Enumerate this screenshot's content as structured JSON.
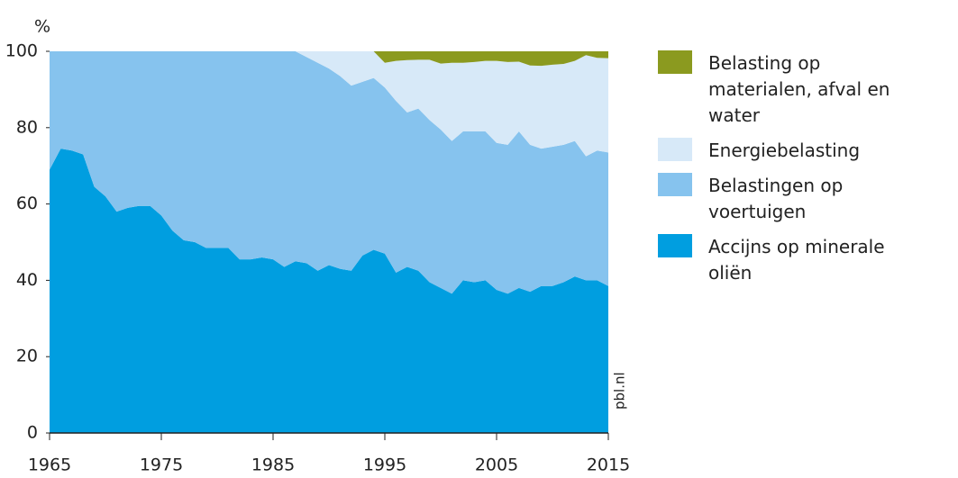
{
  "chart_data": {
    "type": "stacked_area",
    "ylabel": "%",
    "source": "pbl.nl",
    "x": [
      1965,
      1966,
      1967,
      1968,
      1969,
      1970,
      1971,
      1972,
      1973,
      1974,
      1975,
      1976,
      1977,
      1978,
      1979,
      1980,
      1981,
      1982,
      1983,
      1984,
      1985,
      1986,
      1987,
      1988,
      1989,
      1990,
      1991,
      1992,
      1993,
      1994,
      1995,
      1996,
      1997,
      1998,
      1999,
      2000,
      2001,
      2002,
      2003,
      2004,
      2005,
      2006,
      2007,
      2008,
      2009,
      2010,
      2011,
      2012,
      2013,
      2014,
      2015
    ],
    "series": [
      {
        "name": "Accijns op minerale oliën",
        "color": "#009ee0",
        "values": [
          69,
          74.5,
          74,
          73,
          64.5,
          62,
          58,
          59,
          59.5,
          59.5,
          57,
          53,
          50.5,
          50,
          48.5,
          48.5,
          48.5,
          45.5,
          45.5,
          46,
          45.5,
          43.5,
          45,
          44.5,
          42.5,
          44,
          43,
          42.5,
          46.5,
          48,
          47,
          42,
          43.5,
          42.5,
          39.5,
          38,
          36.5,
          40,
          39.5,
          40,
          37.5,
          36.5,
          38,
          37,
          38.5,
          38.5,
          39.5,
          41,
          40,
          40,
          38.5
        ]
      },
      {
        "name": "Belastingen op voertuigen",
        "color": "#86c3ee",
        "values": [
          31,
          25.5,
          26,
          27,
          35.5,
          38,
          42,
          41,
          40.5,
          40.5,
          43,
          47,
          49.5,
          50,
          51.5,
          51.5,
          51.5,
          54.5,
          54.5,
          54,
          54.5,
          56.5,
          55,
          54,
          54.5,
          51.5,
          50.5,
          48.5,
          45.5,
          45,
          43.5,
          45,
          40.5,
          42.5,
          42.5,
          41.5,
          40,
          39,
          39.5,
          39,
          38.5,
          39,
          41,
          38.5,
          36,
          36.5,
          36,
          35.5,
          32.5,
          34,
          35
        ]
      },
      {
        "name": "Energiebelasting",
        "color": "#d7e9f8",
        "values": [
          0,
          0,
          0,
          0,
          0,
          0,
          0,
          0,
          0,
          0,
          0,
          0,
          0,
          0,
          0,
          0,
          0,
          0,
          0,
          0,
          0,
          0,
          0,
          1.5,
          3,
          4.5,
          6.5,
          9,
          8,
          7,
          6.5,
          10.5,
          13.7,
          12.8,
          15.8,
          17.3,
          20.5,
          18,
          18.2,
          18.5,
          21.5,
          21.7,
          18.3,
          20.8,
          21.7,
          21.5,
          21.2,
          21,
          26.5,
          24.3,
          24.7
        ]
      },
      {
        "name": "Belasting op materialen, afval en water",
        "color": "#8b9a1f",
        "values": [
          0,
          0,
          0,
          0,
          0,
          0,
          0,
          0,
          0,
          0,
          0,
          0,
          0,
          0,
          0,
          0,
          0,
          0,
          0,
          0,
          0,
          0,
          0,
          0,
          0,
          0,
          0,
          0,
          0,
          0,
          3,
          2.5,
          2.3,
          2.2,
          2.2,
          3.2,
          3,
          3,
          2.8,
          2.5,
          2.5,
          2.8,
          2.7,
          3.7,
          3.8,
          3.5,
          3.3,
          2.5,
          1,
          1.7,
          1.8
        ]
      }
    ],
    "xlim": [
      1965,
      2015
    ],
    "xticks": [
      1965,
      1975,
      1985,
      1995,
      2005,
      2015
    ],
    "ylim": [
      0,
      100
    ],
    "yticks": [
      0,
      20,
      40,
      60,
      80,
      100
    ]
  }
}
